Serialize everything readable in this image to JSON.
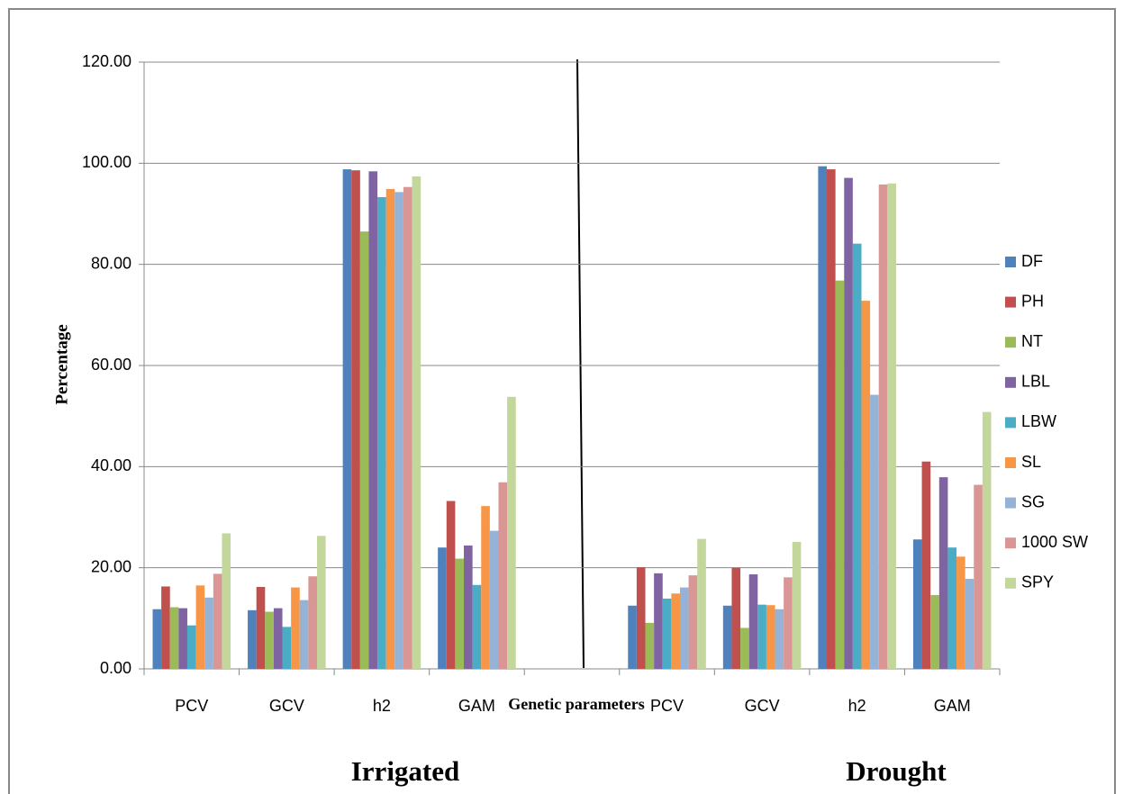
{
  "chart_data": {
    "type": "bar",
    "y_label": "Percentage",
    "x_label": "Genetic parameters",
    "annotations": [
      "Irrigated",
      "Drought"
    ],
    "categories": [
      "PCV",
      "GCV",
      "h2",
      "GAM",
      null,
      "PCV",
      "GCV",
      "h2",
      "GAM"
    ],
    "series": [
      {
        "name": "DF",
        "color": "#4f81bd",
        "values": [
          11.8,
          11.6,
          98.8,
          24.0,
          null,
          12.5,
          12.5,
          99.4,
          25.6
        ]
      },
      {
        "name": "PH",
        "color": "#c0504d",
        "values": [
          16.3,
          16.2,
          98.6,
          33.2,
          null,
          20.1,
          20.0,
          98.8,
          41.0
        ]
      },
      {
        "name": "NT",
        "color": "#9bbb59",
        "values": [
          12.2,
          11.3,
          86.5,
          21.8,
          null,
          9.1,
          8.1,
          76.8,
          14.6
        ]
      },
      {
        "name": "LBL",
        "color": "#8064a2",
        "values": [
          12.0,
          12.0,
          98.4,
          24.4,
          null,
          18.9,
          18.7,
          97.1,
          37.9
        ]
      },
      {
        "name": "LBW",
        "color": "#4bacc6",
        "values": [
          8.6,
          8.3,
          93.3,
          16.6,
          null,
          13.9,
          12.7,
          84.1,
          24.0
        ]
      },
      {
        "name": "SL",
        "color": "#f79646",
        "values": [
          16.5,
          16.1,
          94.9,
          32.2,
          null,
          14.9,
          12.6,
          72.8,
          22.2
        ]
      },
      {
        "name": "SG",
        "color": "#95b3d7",
        "values": [
          14.1,
          13.6,
          94.3,
          27.3,
          null,
          16.1,
          11.8,
          54.2,
          17.8
        ]
      },
      {
        "name": "1000 SW",
        "color": "#d99694",
        "values": [
          18.8,
          18.3,
          95.3,
          36.9,
          null,
          18.5,
          18.1,
          95.8,
          36.4
        ]
      },
      {
        "name": "SPY",
        "color": "#c3d69b",
        "values": [
          26.8,
          26.3,
          97.4,
          53.8,
          null,
          25.7,
          25.1,
          96.0,
          50.8
        ]
      }
    ],
    "ylim": [
      0,
      120
    ],
    "yticks": [
      {
        "value": 0,
        "label": "0.00"
      },
      {
        "value": 20,
        "label": "20.00"
      },
      {
        "value": 40,
        "label": "40.00"
      },
      {
        "value": 60,
        "label": "60.00"
      },
      {
        "value": 80,
        "label": "80.00"
      },
      {
        "value": 100,
        "label": "100.00"
      },
      {
        "value": 120,
        "label": "120.00"
      }
    ],
    "grid": true,
    "legend": "right"
  }
}
